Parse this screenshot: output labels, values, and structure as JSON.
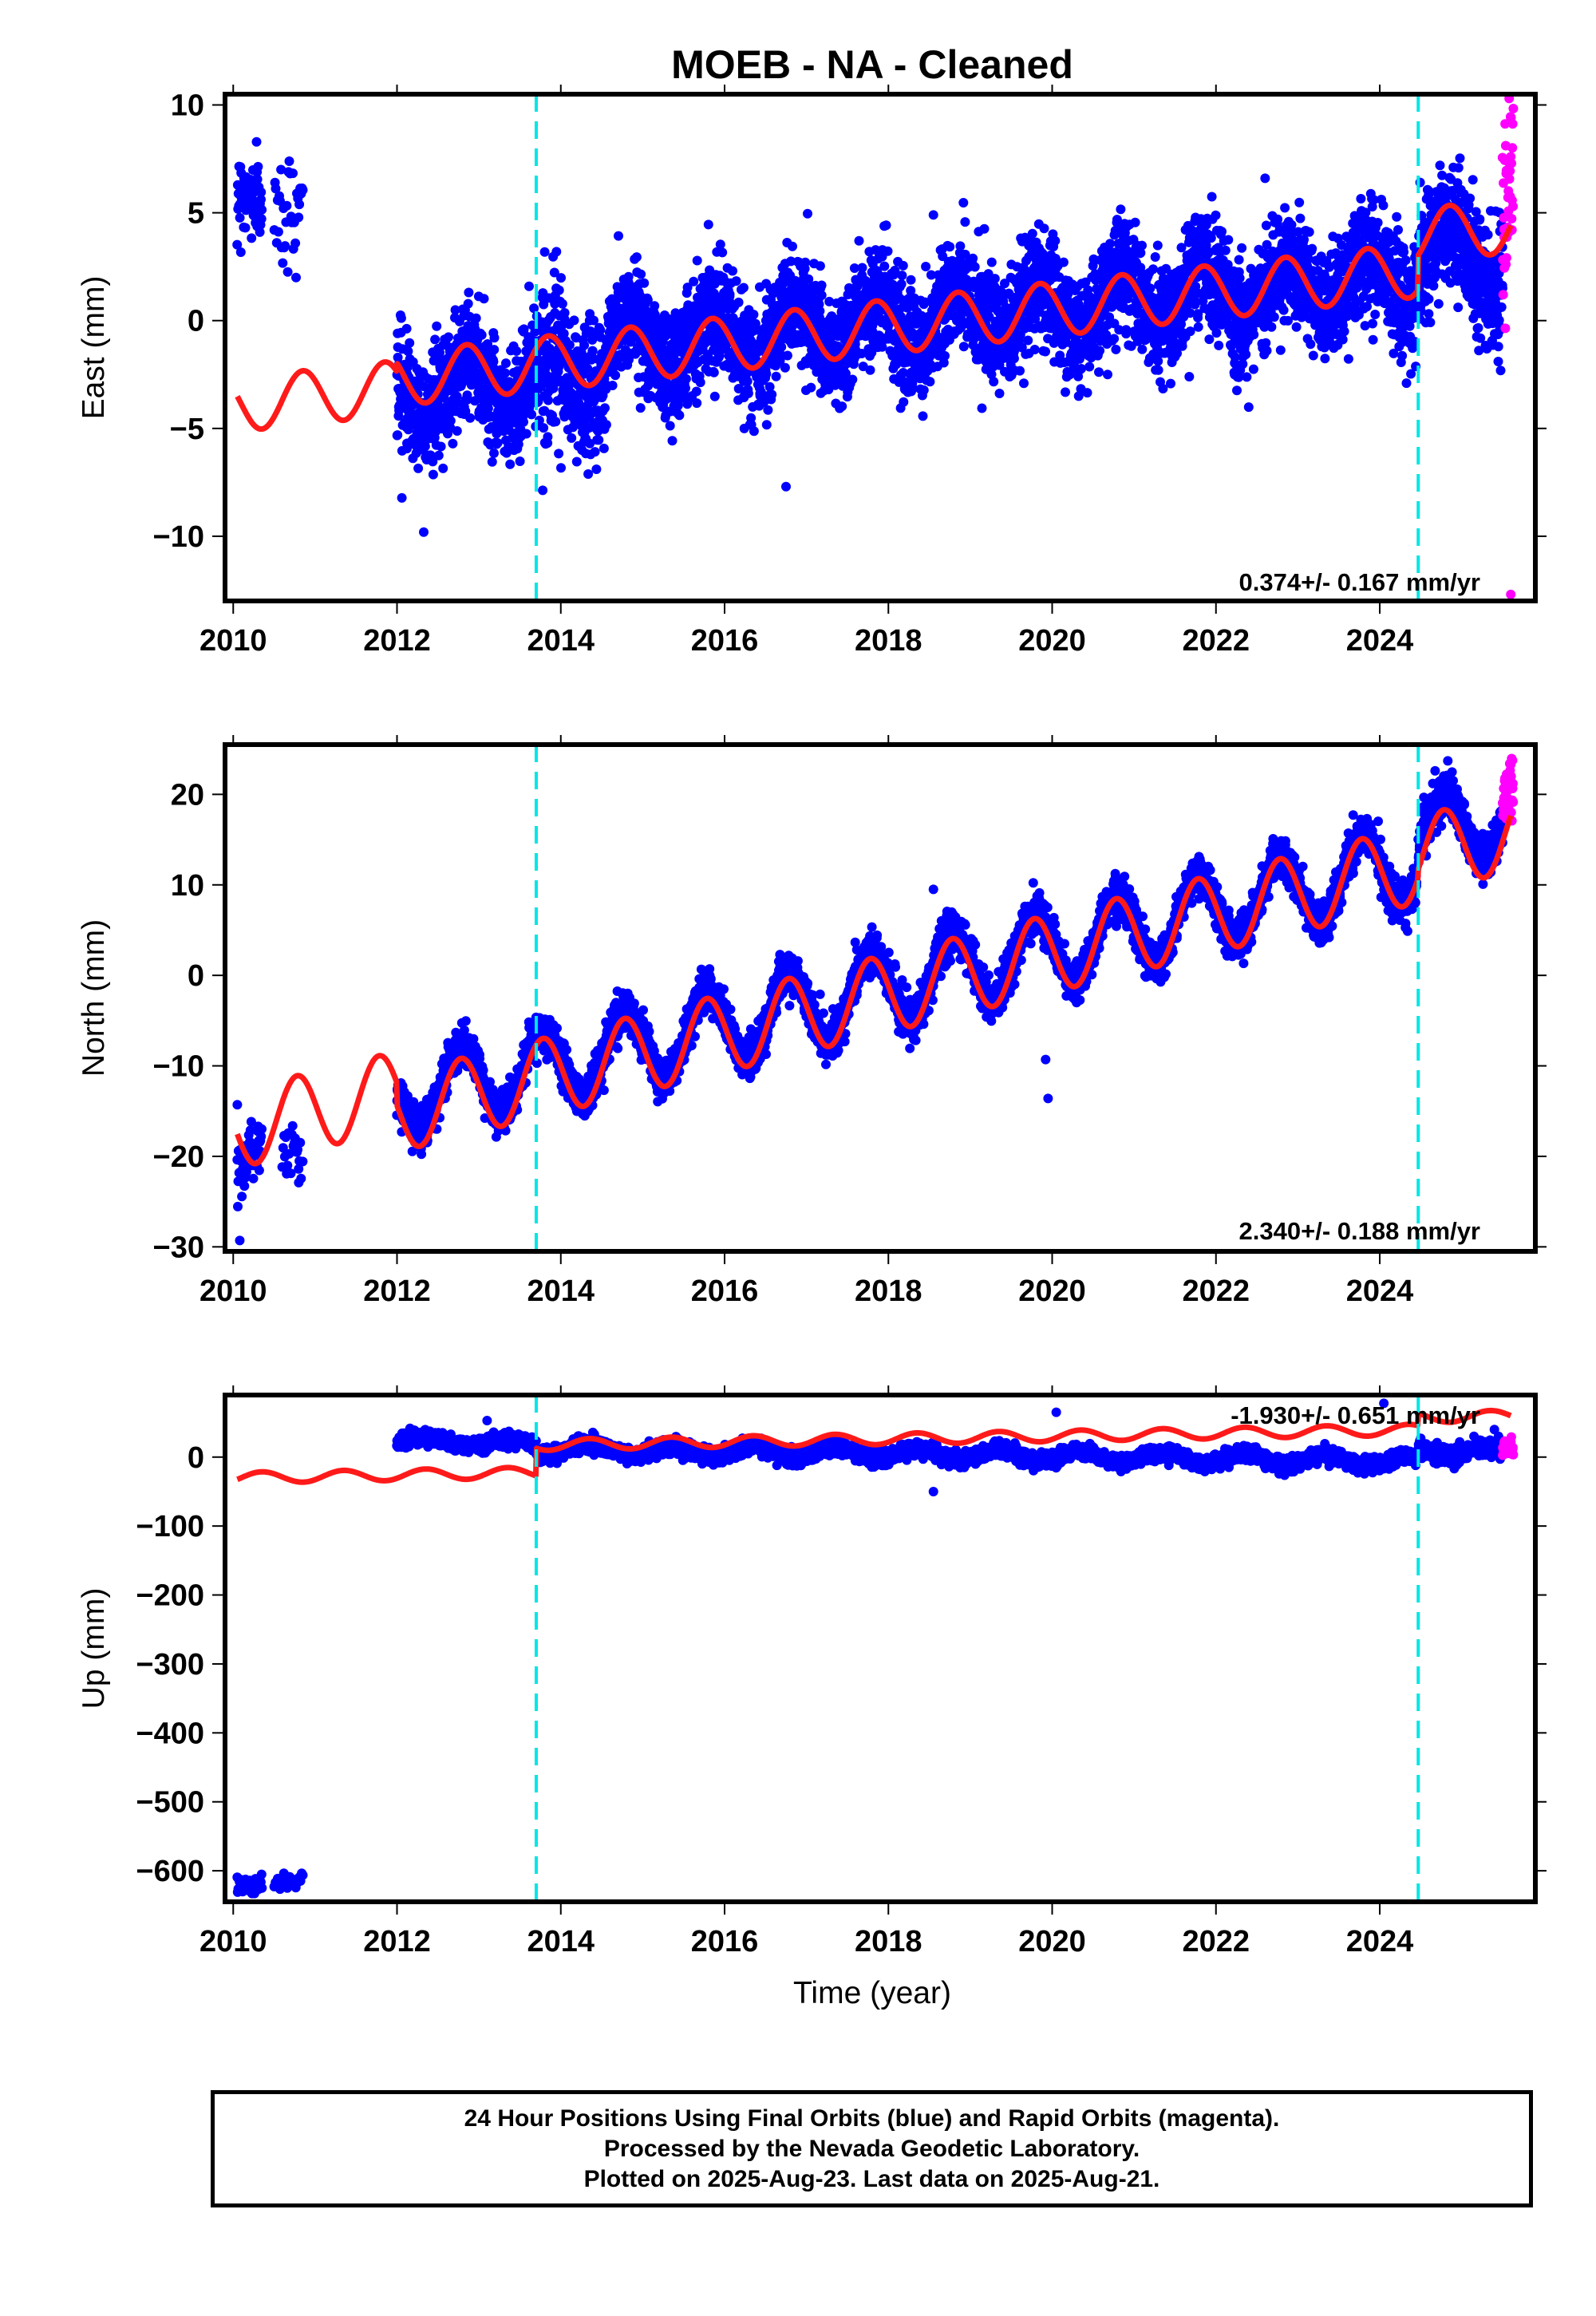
{
  "title": "MOEB  - NA - Cleaned",
  "x_axis_label": "Time (year)",
  "colors": {
    "final_orbits": "#0000ff",
    "rapid_orbits": "#ff00ff",
    "model": "#ff1a1a",
    "offset_lines": "#00e6e6"
  },
  "footer": {
    "line1": "24 Hour Positions Using Final Orbits (blue) and Rapid Orbits (magenta).",
    "line2": "Processed by the Nevada Geodetic Laboratory.",
    "line3": "Plotted on 2025-Aug-23. Last data on 2025-Aug-21."
  },
  "chart_data": [
    {
      "type": "scatter",
      "panel": "east",
      "ylabel": "East (mm)",
      "rate_label": "0.374+/- 0.167 mm/yr",
      "xlim": [
        2009.9,
        2025.9
      ],
      "ylim": [
        -13,
        10.5
      ],
      "xticks": [
        2010,
        2012,
        2014,
        2016,
        2018,
        2020,
        2022,
        2024
      ],
      "yticks": [
        -10,
        -5,
        0,
        5,
        10
      ],
      "offsets": [
        2013.7,
        2024.47
      ],
      "series": [
        {
          "name": "Final Orbits",
          "color": "#0000ff",
          "segments": [
            {
              "x0": 2010.05,
              "x1": 2010.35,
              "n": 70,
              "y0": 6.0,
              "y1": 5.5,
              "amp": 0,
              "sd": 0.9,
              "phase": 0
            },
            {
              "x0": 2010.5,
              "x1": 2010.85,
              "n": 35,
              "y0": 4.5,
              "y1": 5.5,
              "amp": 0,
              "sd": 1.4,
              "phase": 0
            },
            {
              "x0": 2012.0,
              "x1": 2013.7,
              "n": 700,
              "y0": -3.3,
              "y1": -2.6,
              "amp": 1.2,
              "sd": 1.3,
              "phase": 0.6
            },
            {
              "x0": 2013.7,
              "x1": 2014.55,
              "n": 320,
              "y0": -2.6,
              "y1": -2.6,
              "amp": 1.0,
              "sd": 1.6,
              "phase": 0.6
            },
            {
              "x0": 2014.55,
              "x1": 2024.45,
              "n": 4200,
              "y0": -1.2,
              "y1": 2.0,
              "amp": 1.3,
              "sd": 1.25,
              "phase": 0.6
            },
            {
              "x0": 2024.47,
              "x1": 2025.5,
              "n": 450,
              "y0": 3.5,
              "y1": 2.8,
              "amp": 1.4,
              "sd": 1.4,
              "phase": 0.6
            }
          ]
        },
        {
          "name": "Rapid Orbits",
          "color": "#ff00ff",
          "segments": [
            {
              "x0": 2025.5,
              "x1": 2025.63,
              "n": 40,
              "y0": 4.0,
              "y1": 7.5,
              "amp": 0,
              "sd": 1.8,
              "phase": 0
            }
          ]
        }
      ],
      "outliers": [
        {
          "x": 2016.75,
          "y": -7.7
        },
        {
          "x": 2018.55,
          "y": 4.9
        },
        {
          "x": 2022.6,
          "y": 6.6
        },
        {
          "x": 2025.6,
          "y": -12.7
        },
        {
          "x": 2025.58,
          "y": 10.3
        }
      ],
      "model": {
        "x0": 2010.05,
        "x1": 2025.6,
        "base0": -3.9,
        "base1": 2.4,
        "amp": 1.25,
        "phase": 0.6,
        "steps": [
          {
            "x": 2012.0,
            "dy": 0.4
          },
          {
            "x": 2024.47,
            "dy": 1.6
          }
        ]
      }
    },
    {
      "type": "scatter",
      "panel": "north",
      "ylabel": "North (mm)",
      "rate_label": "2.340+/- 0.188 mm/yr",
      "xlim": [
        2009.9,
        2025.9
      ],
      "ylim": [
        -30.5,
        25.5
      ],
      "xticks": [
        2010,
        2012,
        2014,
        2016,
        2018,
        2020,
        2022,
        2024
      ],
      "yticks": [
        -30,
        -20,
        -10,
        0,
        10,
        20
      ],
      "offsets": [
        2013.7,
        2024.47
      ],
      "series": [
        {
          "name": "Final Orbits",
          "color": "#0000ff",
          "segments": [
            {
              "x0": 2010.05,
              "x1": 2010.35,
              "n": 55,
              "y0": -21.5,
              "y1": -18.0,
              "amp": 0,
              "sd": 1.6,
              "phase": 0
            },
            {
              "x0": 2010.6,
              "x1": 2010.85,
              "n": 25,
              "y0": -19.5,
              "y1": -19.5,
              "amp": 0,
              "sd": 1.4,
              "phase": 0
            },
            {
              "x0": 2012.0,
              "x1": 2013.7,
              "n": 650,
              "y0": -13.5,
              "y1": -10.0,
              "amp": 4.0,
              "sd": 1.1,
              "phase": 0.53
            },
            {
              "x0": 2013.7,
              "x1": 2024.45,
              "n": 4600,
              "y0": -10.5,
              "y1": 12.5,
              "amp": 4.2,
              "sd": 1.1,
              "phase": 0.53
            },
            {
              "x0": 2024.47,
              "x1": 2025.5,
              "n": 450,
              "y0": 15.5,
              "y1": 17.5,
              "amp": 4.0,
              "sd": 1.2,
              "phase": 0.53
            }
          ]
        },
        {
          "name": "Rapid Orbits",
          "color": "#ff00ff",
          "segments": [
            {
              "x0": 2025.5,
              "x1": 2025.63,
              "n": 40,
              "y0": 19.5,
              "y1": 21.0,
              "amp": 0,
              "sd": 1.8,
              "phase": 0
            }
          ]
        }
      ],
      "outliers": [
        {
          "x": 2010.08,
          "y": -29.3
        },
        {
          "x": 2010.05,
          "y": -14.3
        },
        {
          "x": 2010.8,
          "y": -22.9
        },
        {
          "x": 2019.95,
          "y": -13.6
        },
        {
          "x": 2019.92,
          "y": -9.3
        },
        {
          "x": 2018.55,
          "y": 9.5
        }
      ],
      "model": {
        "x0": 2010.05,
        "x1": 2025.6,
        "base0": -17.0,
        "base1": 17.3,
        "amp": 4.3,
        "phase": 0.53,
        "steps": [
          {
            "x": 2012.0,
            "dy": -2.5
          },
          {
            "x": 2024.47,
            "dy": 1.0
          }
        ]
      }
    },
    {
      "type": "scatter",
      "panel": "up",
      "ylabel": "Up (mm)",
      "rate_label": "-1.930+/- 0.651 mm/yr",
      "xlim": [
        2009.9,
        2025.9
      ],
      "ylim": [
        -645,
        90
      ],
      "xticks": [
        2010,
        2012,
        2014,
        2016,
        2018,
        2020,
        2022,
        2024
      ],
      "yticks": [
        -600,
        -500,
        -400,
        -300,
        -200,
        -100,
        0
      ],
      "offsets": [
        2013.7,
        2024.47
      ],
      "series": [
        {
          "name": "Final Orbits",
          "color": "#0000ff",
          "segments": [
            {
              "x0": 2010.05,
              "x1": 2010.35,
              "n": 55,
              "y0": -622,
              "y1": -618,
              "amp": 0,
              "sd": 7,
              "phase": 0
            },
            {
              "x0": 2010.5,
              "x1": 2010.85,
              "n": 25,
              "y0": -620,
              "y1": -612,
              "amp": 0,
              "sd": 6,
              "phase": 0
            },
            {
              "x0": 2012.0,
              "x1": 2013.7,
              "n": 650,
              "y0": 24,
              "y1": 20,
              "amp": 5,
              "sd": 5,
              "phase": 0.1
            },
            {
              "x0": 2013.7,
              "x1": 2024.45,
              "n": 4600,
              "y0": 12,
              "y1": -6,
              "amp": 8,
              "sd": 5,
              "phase": 0.1
            },
            {
              "x0": 2024.47,
              "x1": 2025.5,
              "n": 450,
              "y0": 10,
              "y1": 10,
              "amp": 6,
              "sd": 6,
              "phase": 0.1
            }
          ]
        },
        {
          "name": "Rapid Orbits",
          "color": "#ff00ff",
          "segments": [
            {
              "x0": 2025.5,
              "x1": 2025.63,
              "n": 40,
              "y0": 12,
              "y1": 16,
              "amp": 0,
              "sd": 8,
              "phase": 0
            }
          ]
        }
      ],
      "outliers": [
        {
          "x": 2020.05,
          "y": 65
        },
        {
          "x": 2013.1,
          "y": 53
        },
        {
          "x": 2024.05,
          "y": 78
        },
        {
          "x": 2018.55,
          "y": -50
        },
        {
          "x": 2025.4,
          "y": 40
        }
      ],
      "model": {
        "x0": 2010.05,
        "x1": 2025.6,
        "base0": -30,
        "base1": 2,
        "amp": 8,
        "phase": 0.1,
        "steps": [
          {
            "x": 2013.7,
            "dy": 40
          },
          {
            "x": 2024.47,
            "dy": 18
          }
        ]
      }
    }
  ]
}
